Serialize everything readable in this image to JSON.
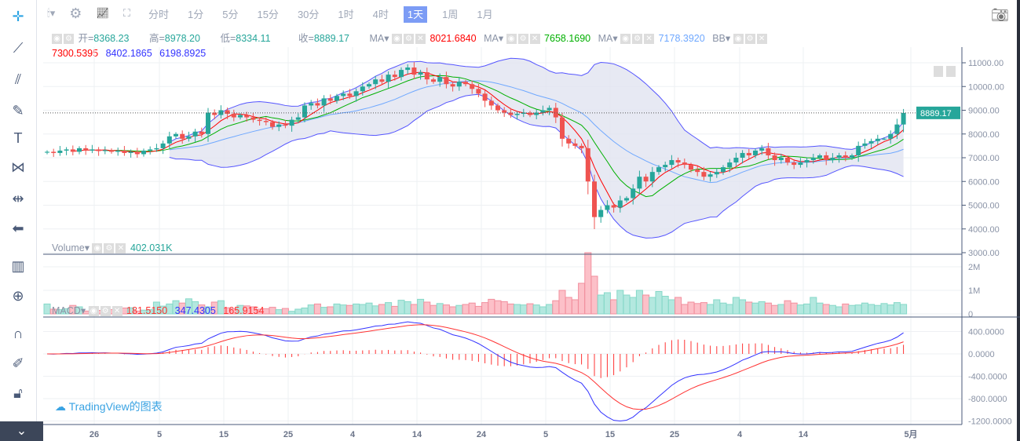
{
  "toolbar": {
    "intervals": [
      "分时",
      "1分",
      "5分",
      "15分",
      "30分",
      "1时",
      "4时",
      "1天",
      "1周",
      "1月"
    ],
    "active": "1天"
  },
  "legend": {
    "open_label": "开=",
    "open": "8368.23",
    "high_label": "高=",
    "high": "8978.20",
    "low_label": "低=",
    "low": "8334.11",
    "close_label": "收=",
    "close": "8889.17",
    "ma1_label": "MA",
    "ma1": "8021.6840",
    "ma2_label": "MA",
    "ma2": "7658.1690",
    "ma3_label": "MA",
    "ma3": "7178.3920",
    "bb_label": "BB",
    "bb_values": [
      "7300.5395",
      "8402.1865",
      "6198.8925"
    ],
    "volume_label": "Volume",
    "volume": "402.031K",
    "macd_label": "MACD",
    "macd_values": [
      "181.5150",
      "347.4305",
      "165.9154"
    ]
  },
  "watermark": "TradingView的图表",
  "colors": {
    "up": "#26a69a",
    "down": "#ef5350",
    "ma1": "#ff0000",
    "ma2": "#00b000",
    "ma3": "#6fa8ff",
    "bb": "#5555ff",
    "bb_fill": "#e1e3f0",
    "macd": "#3333ff",
    "signal": "#ff3333"
  },
  "chart_data": [
    {
      "type": "candlestick",
      "pane": "price",
      "last_price": "8889.17",
      "y_ticks": [
        "11000.00",
        "10000.00",
        "9000.00",
        "8000.00",
        "7000.00",
        "6000.00",
        "5000.00",
        "4000.00",
        "3000.00"
      ],
      "ylim": [
        3000,
        11000
      ],
      "x_ticks": [
        "26",
        "5",
        "15",
        "25",
        "4",
        "14",
        "24",
        "5",
        "15",
        "25",
        "4",
        "14",
        "5月"
      ],
      "close": [
        7250,
        7200,
        7300,
        7350,
        7250,
        7400,
        7300,
        7350,
        7280,
        7320,
        7250,
        7300,
        7200,
        7250,
        7150,
        7300,
        7350,
        7400,
        7600,
        7900,
        8000,
        7800,
        7900,
        8100,
        8000,
        8900,
        8800,
        9000,
        8850,
        8700,
        8800,
        8700,
        8600,
        8550,
        8500,
        8300,
        8400,
        8350,
        8600,
        8700,
        9200,
        9300,
        9200,
        9500,
        9400,
        9600,
        9700,
        9600,
        9800,
        10000,
        10100,
        10300,
        10200,
        10500,
        10400,
        10700,
        10800,
        10500,
        10600,
        10300,
        10200,
        10400,
        10100,
        10000,
        10200,
        10100,
        9900,
        9700,
        9400,
        9200,
        9000,
        8900,
        8800,
        8850,
        8900,
        8800,
        8900,
        9000,
        9100,
        8700,
        7800,
        7600,
        7500,
        7400,
        6000,
        4500,
        4800,
        5000,
        4900,
        5200,
        5300,
        5700,
        6200,
        6000,
        6400,
        6600,
        6700,
        6900,
        6800,
        6700,
        6500,
        6400,
        6200,
        6300,
        6400,
        6600,
        6800,
        7000,
        7200,
        7100,
        7300,
        7400,
        7100,
        6900,
        7000,
        6800,
        6700,
        6800,
        6900,
        7000,
        7100,
        6900,
        7000,
        7100,
        7000,
        7100,
        7500,
        7600,
        7700,
        7800,
        7800,
        8000,
        8400,
        8889.17
      ],
      "indicators": [
        "MA",
        "MA",
        "MA",
        "BB"
      ]
    },
    {
      "type": "bar",
      "pane": "volume",
      "y_ticks": [
        "2M",
        "1M",
        "0"
      ],
      "ylim": [
        0,
        2600000
      ],
      "values_k": [
        420,
        200,
        180,
        220,
        360,
        300,
        120,
        300,
        150,
        240,
        180,
        110,
        250,
        260,
        120,
        160,
        180,
        500,
        330,
        420,
        560,
        460,
        640,
        520,
        380,
        300,
        500,
        560,
        260,
        220,
        360,
        340,
        300,
        200,
        220,
        280,
        180,
        230,
        110,
        200,
        250,
        380,
        420,
        280,
        300,
        420,
        380,
        360,
        420,
        400,
        460,
        340,
        400,
        480,
        320,
        580,
        520,
        400,
        620,
        500,
        360,
        440,
        380,
        300,
        360,
        400,
        460,
        320,
        480,
        620,
        560,
        520,
        420,
        400,
        380,
        430,
        380,
        300,
        400,
        560,
        1000,
        700,
        600,
        1300,
        2600,
        1600,
        800,
        900,
        600,
        1000,
        800,
        700,
        1000,
        800,
        700,
        950,
        750,
        600,
        700,
        400,
        500,
        440,
        480,
        400,
        600,
        460,
        400,
        700,
        600,
        500,
        460,
        520,
        460,
        360,
        400,
        560,
        460,
        380,
        420,
        700,
        460,
        400,
        360,
        300,
        420,
        360,
        380,
        460,
        400,
        360,
        440,
        380,
        480,
        402
      ]
    },
    {
      "type": "line",
      "pane": "macd",
      "y_ticks": [
        "400.0000",
        "0.0000",
        "-400.0000",
        "-800.0000",
        "-1200.0000"
      ],
      "ylim": [
        -1250,
        600
      ]
    }
  ]
}
